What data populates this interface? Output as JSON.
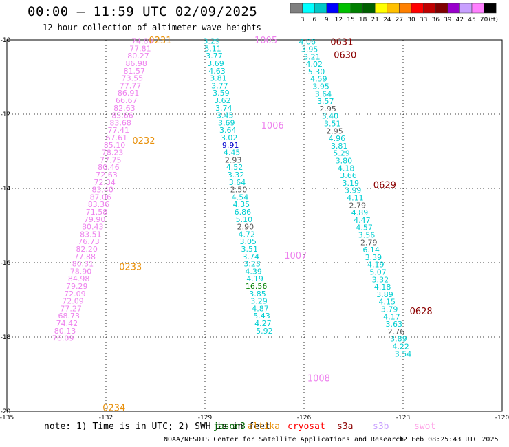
{
  "header": {
    "title": "00:00 – 11:59 UTC 02/09/2025",
    "subtitle": "12 hour collection of altimeter wave heights"
  },
  "colorbar": {
    "labels": [
      "3",
      "6",
      "9",
      "12",
      "15",
      "18",
      "21",
      "24",
      "27",
      "30",
      "33",
      "36",
      "39",
      "42",
      "45",
      "70"
    ],
    "unit": "(ft)",
    "colors": [
      "#7f7f7f",
      "#00ffff",
      "#00c8c8",
      "#0000ff",
      "#00c000",
      "#008000",
      "#006000",
      "#ffff00",
      "#ffc000",
      "#ff8000",
      "#ff0000",
      "#c00000",
      "#800000",
      "#9900cc",
      "#c8a0ff",
      "#ff80ff",
      "#000000"
    ]
  },
  "map": {
    "lat_ticks": [
      "-10",
      "-12",
      "-14",
      "-16",
      "-18",
      "-20"
    ],
    "lon_ticks": [
      "-135",
      "-132",
      "-129",
      "-126",
      "-123",
      "-120"
    ],
    "lat_range": [
      -20,
      -10
    ],
    "lon_range": [
      -135,
      -120
    ]
  },
  "passes": [
    {
      "id": "0231",
      "lat": -10.0,
      "lon": -130.7,
      "color": "#e8900a"
    },
    {
      "id": "0232",
      "lat": -12.7,
      "lon": -131.2,
      "color": "#e8900a"
    },
    {
      "id": "0233",
      "lat": -16.1,
      "lon": -131.6,
      "color": "#e8900a"
    },
    {
      "id": "0234",
      "lat": -19.9,
      "lon": -132.1,
      "color": "#e8900a"
    },
    {
      "id": "1005",
      "lat": -10.0,
      "lon": -127.5,
      "color": "#ee82ee"
    },
    {
      "id": "1006",
      "lat": -12.3,
      "lon": -127.3,
      "color": "#ee82ee"
    },
    {
      "id": "1007",
      "lat": -15.8,
      "lon": -126.6,
      "color": "#ee82ee"
    },
    {
      "id": "1008",
      "lat": -19.1,
      "lon": -125.9,
      "color": "#ee82ee"
    },
    {
      "id": "0631",
      "lat": -10.05,
      "lon": -125.2,
      "color": "#8b0000"
    },
    {
      "id": "0630",
      "lat": -10.4,
      "lon": -125.1,
      "color": "#8b0000"
    },
    {
      "id": "0629",
      "lat": -13.9,
      "lon": -123.9,
      "color": "#8b0000"
    },
    {
      "id": "0628",
      "lat": -17.3,
      "lon": -122.8,
      "color": "#8b0000"
    }
  ],
  "tracks": [
    {
      "name": "pink-track",
      "lat_start": -10.03,
      "lon_start": -130.9,
      "lon_end": -133.3,
      "step": 0.2,
      "color": "#ee82ee",
      "values": [
        "74.80",
        "77.81",
        "80.27",
        "86.98",
        "81.57",
        "73.55",
        "77.77",
        "86.91",
        "66.67",
        "82.63",
        "83.66",
        "83.68",
        "77.41",
        "67.61",
        "85.10",
        "78.23",
        "77.75",
        "80.46",
        "72.63",
        "72.34",
        "83.40",
        "87.06",
        "83.36",
        "71.58",
        "79.90",
        "80.43",
        "83.51",
        "76.73",
        "82.20",
        "77.88",
        "80.31",
        "78.90",
        "84.98",
        "79.29",
        "72.09",
        "72.09",
        "77.27",
        "68.73",
        "74.42",
        "80.13",
        "76.09"
      ]
    },
    {
      "name": "mid-track",
      "lat_start": -10.03,
      "lon_start": -128.8,
      "lon_end": -127.2,
      "step": 0.2,
      "color": "#00ced1",
      "values": [
        "3.29",
        "5.11",
        "3.77",
        "3.69",
        "4.63",
        "3.81",
        "3.77",
        "3.59",
        "3.62",
        "3.74",
        "3.45",
        "3.69",
        "3.64",
        "3.02",
        "9.91",
        "4.45",
        "2.93",
        "4.52",
        "3.32",
        "3.64",
        "2.50",
        "4.54",
        "4.35",
        "6.86",
        "5.10",
        "2.90",
        "4.72",
        "3.05",
        "3.51",
        "3.74",
        "3.23",
        "4.39",
        "4.19",
        "16.56",
        "3.85",
        "3.29",
        "4.87",
        "5.43",
        "4.27",
        "5.92"
      ],
      "colors": {
        "9.91": "#0000cd",
        "2.93": "#555555",
        "2.50": "#555555",
        "2.90": "#555555",
        "16.56": "#008000"
      }
    },
    {
      "name": "right-track",
      "lat_start": -10.05,
      "lon_start": -125.9,
      "lon_end": -123.0,
      "step": 0.2,
      "color": "#00ced1",
      "values": [
        "4.06",
        "3.95",
        "3.21",
        "4.02",
        "5.30",
        "4.59",
        "3.95",
        "3.64",
        "3.57",
        "2.95",
        "3.40",
        "3.51",
        "2.95",
        "4.96",
        "3.81",
        "5.29",
        "3.80",
        "4.18",
        "3.66",
        "3.19",
        "3.99",
        "4.11",
        "2.79",
        "4.89",
        "4.47",
        "4.57",
        "3.56",
        "2.79",
        "6.14",
        "3.39",
        "4.19",
        "5.07",
        "3.32",
        "4.18",
        "3.89",
        "4.15",
        "3.79",
        "4.17",
        "3.63",
        "2.76",
        "3.89",
        "4.22",
        "3.54"
      ],
      "colors": {
        "2.95": "#555555",
        "2.79": "#555555",
        "2.76": "#555555"
      }
    }
  ],
  "footer": {
    "note": "note: 1) Time is in UTC; 2) SWH is in feet",
    "sats": [
      {
        "name": "jason3",
        "color": "#006400"
      },
      {
        "name": "altika",
        "color": "#e8900a"
      },
      {
        "name": "cryosat",
        "color": "#ff0000"
      },
      {
        "name": "s3a",
        "color": "#8b0000"
      },
      {
        "name": "s3b",
        "color": "#c8a0ff"
      },
      {
        "name": "swot",
        "color": "#ff9ee6"
      }
    ],
    "credit": "NOAA/NESDIS Center for Satellite Applications and Research",
    "timestamp": "12 Feb 08:25:43 UTC 2025"
  }
}
